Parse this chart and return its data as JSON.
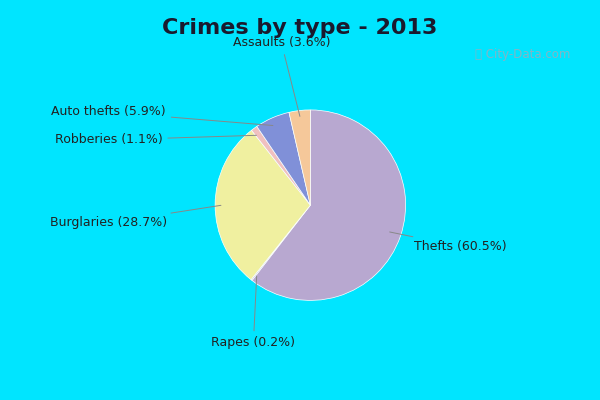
{
  "title": "Crimes by type - 2013",
  "slices": [
    {
      "label": "Thefts (60.5%)",
      "value": 60.5,
      "color": "#b8a8d0"
    },
    {
      "label": "Rapes (0.2%)",
      "value": 0.2,
      "color": "#b8a8d0"
    },
    {
      "label": "Burglaries (28.7%)",
      "value": 28.7,
      "color": "#f0f0a0"
    },
    {
      "label": "Robberies (1.1%)",
      "value": 1.1,
      "color": "#f0c0c0"
    },
    {
      "label": "Auto thefts (5.9%)",
      "value": 5.9,
      "color": "#8090d8"
    },
    {
      "label": "Assaults (3.6%)",
      "value": 3.6,
      "color": "#f5c89a"
    }
  ],
  "title_bar_color": "#00e5ff",
  "chart_bg_top": "#d0efe0",
  "chart_bg_bottom": "#c0e8e0",
  "bottom_bar_color": "#00e5ff",
  "title_fontsize": 16,
  "label_fontsize": 9
}
